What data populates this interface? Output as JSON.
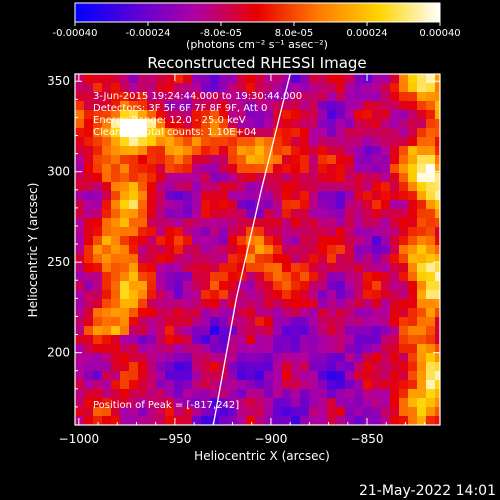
{
  "colorbar": {
    "tick_labels": [
      "-0.00040",
      "-0.00024",
      "-8.0e-05",
      "8.0e-05",
      "0.00024",
      "0.00040"
    ],
    "tick_values": [
      -0.0004,
      -0.00024,
      -8e-05,
      8e-05,
      0.00024,
      0.0004
    ],
    "range": [
      -0.0004,
      0.0004
    ],
    "units_label": "(photons cm⁻² s⁻¹ asec⁻²)",
    "stops": [
      "#0000ff",
      "#5b00d8",
      "#b000a0",
      "#e80000",
      "#ff7a00",
      "#ffd400",
      "#ffffff"
    ]
  },
  "chart_data": {
    "type": "heatmap",
    "title": "Reconstructed RHESSI Image",
    "xlabel": "Heliocentric X (arcsec)",
    "ylabel": "Heliocentric Y (arcsec)",
    "xlim": [
      -1002,
      -812
    ],
    "ylim": [
      160,
      354
    ],
    "x_ticks": [
      -1000,
      -950,
      -900,
      -850
    ],
    "x_tick_labels": [
      "−1000",
      "−950",
      "−900",
      "−850"
    ],
    "y_ticks": [
      200,
      250,
      300,
      350
    ],
    "y_tick_labels": [
      "200",
      "250",
      "300",
      "350"
    ],
    "annotations": [
      "3-Jun-2015 19:24:44.000 to 19:30:44.000",
      "Detectors: 3F 5F 6F 7F 8F 9F, Att 0",
      "Energy Range: 12.0 - 25.0 keV",
      "Clean      Total counts: 1.10E+04"
    ],
    "peak_label": "Position of Peak = [-817,242]",
    "peak": [
      -817,
      242
    ],
    "limb_curve": [
      [
        -930,
        160
      ],
      [
        -918,
        230
      ],
      [
        -905,
        290
      ],
      [
        -890,
        354
      ]
    ]
  },
  "footer": {
    "timestamp": "21-May-2022 14:01"
  }
}
